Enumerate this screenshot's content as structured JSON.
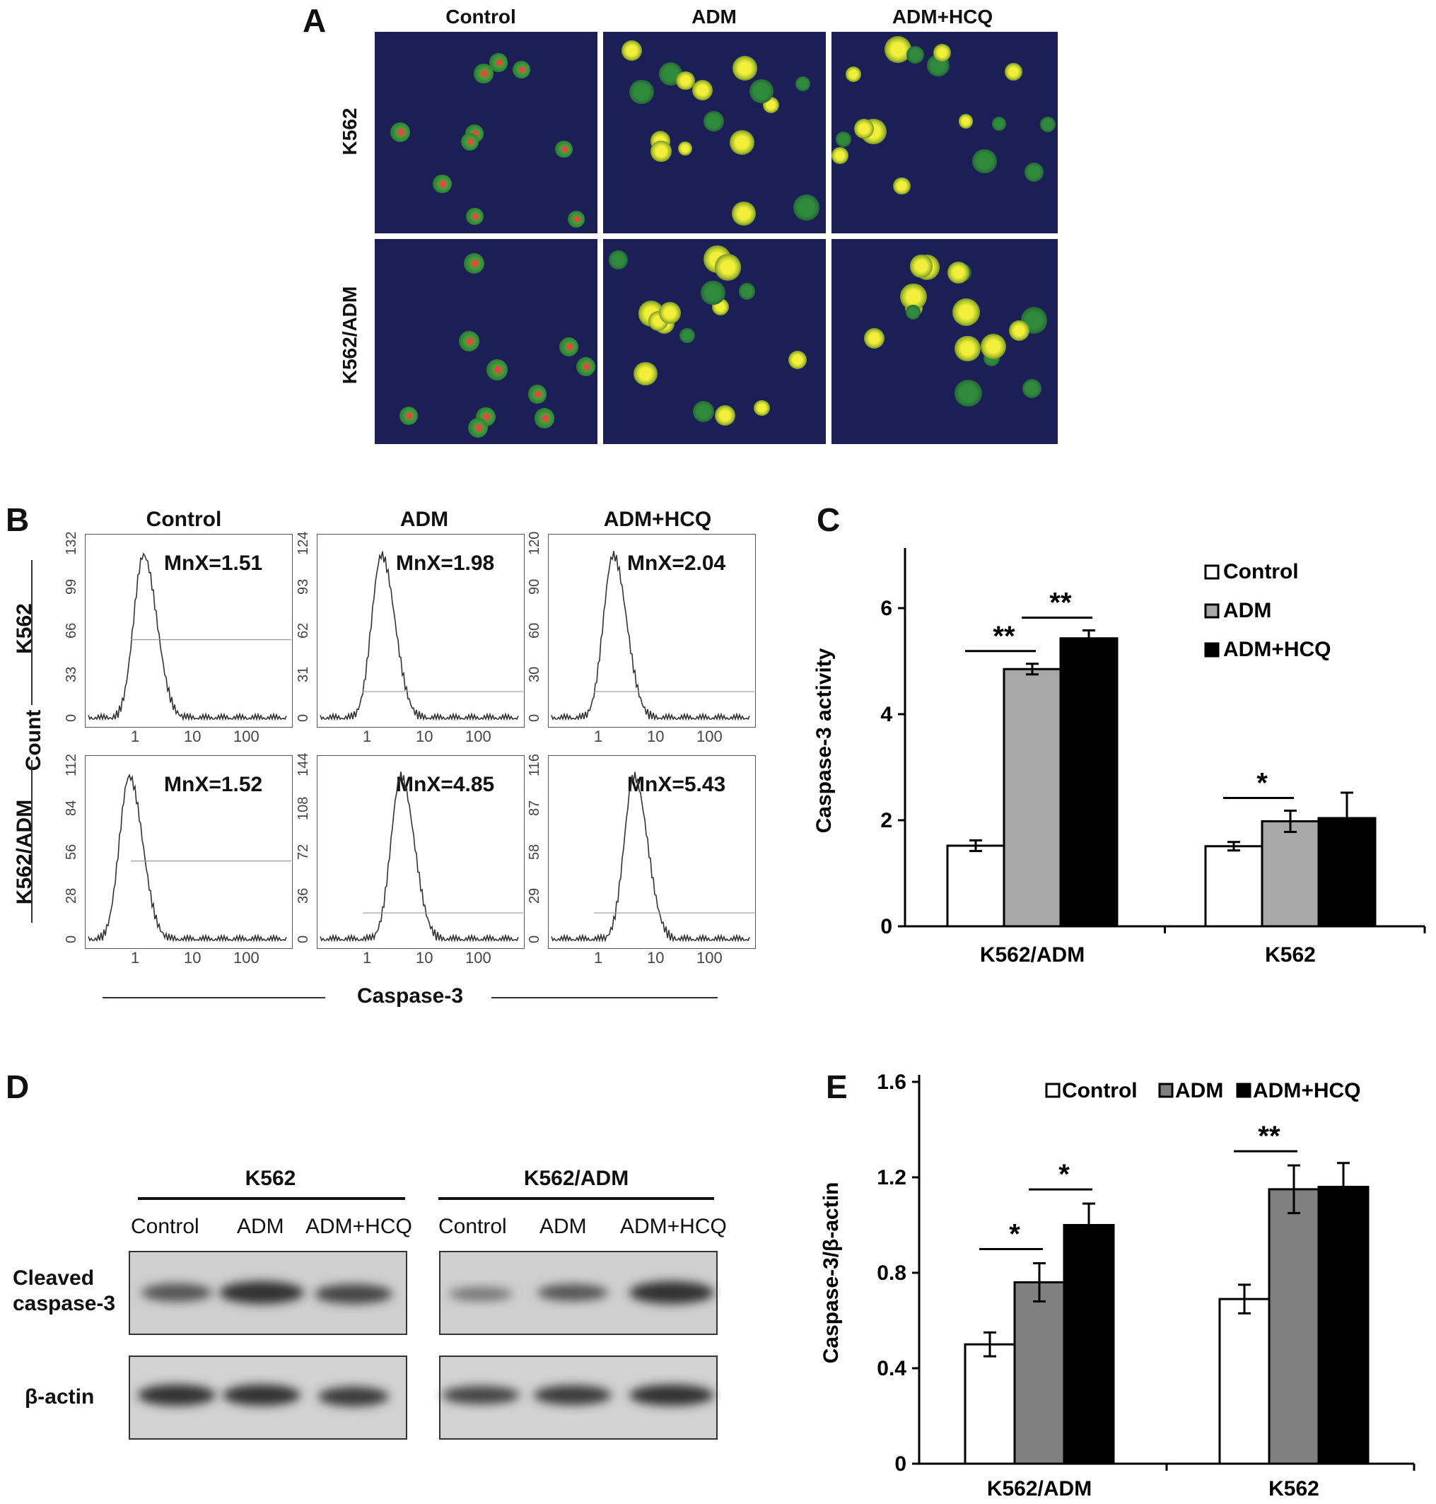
{
  "panelA": {
    "letter": "A",
    "columns": [
      "Control",
      "ADM",
      "ADM+HCQ"
    ],
    "rows": [
      "K562",
      "K562/ADM"
    ]
  },
  "panelB": {
    "letter": "B",
    "columns": [
      "Control",
      "ADM",
      "ADM+HCQ"
    ],
    "rows": [
      "K562",
      "K562/ADM"
    ],
    "ylabel": "Count",
    "xlabel": "Caspase-3",
    "x_ticks": [
      "1",
      "10",
      "100"
    ],
    "histograms": [
      {
        "row": "K562",
        "col": "Control",
        "mnx": "MnX=1.51",
        "yticks": [
          "0",
          "33",
          "66",
          "99",
          "132"
        ],
        "peak_at_log": 0.18
      },
      {
        "row": "K562",
        "col": "ADM",
        "mnx": "MnX=1.98",
        "yticks": [
          "0",
          "31",
          "62",
          "93",
          "124"
        ],
        "peak_at_log": 0.3
      },
      {
        "row": "K562",
        "col": "ADM+HCQ",
        "mnx": "MnX=2.04",
        "yticks": [
          "0",
          "30",
          "60",
          "90",
          "120"
        ],
        "peak_at_log": 0.31
      },
      {
        "row": "K562/ADM",
        "col": "Control",
        "mnx": "MnX=1.52",
        "yticks": [
          "0",
          "28",
          "56",
          "84",
          "112"
        ],
        "peak_at_log": -0.1
      },
      {
        "row": "K562/ADM",
        "col": "ADM",
        "mnx": "MnX=4.85",
        "yticks": [
          "0",
          "36",
          "72",
          "108",
          "144"
        ],
        "peak_at_log": 0.68
      },
      {
        "row": "K562/ADM",
        "col": "ADM+HCQ",
        "mnx": "MnX=5.43",
        "yticks": [
          "0",
          "29",
          "58",
          "87",
          "116"
        ],
        "peak_at_log": 0.72
      }
    ]
  },
  "panelD": {
    "letter": "D",
    "groups": [
      "K562",
      "K562/ADM"
    ],
    "lanes": [
      "Control",
      "ADM",
      "ADM+HCQ"
    ],
    "rows": [
      "Cleaved\ncaspase-3",
      "β-actin"
    ]
  },
  "chart_data": [
    {
      "panel": "C",
      "type": "bar",
      "categories": [
        "K562/ADM",
        "K562"
      ],
      "series": [
        {
          "name": "Control",
          "values": [
            1.52,
            1.51
          ],
          "errors": [
            0.1,
            0.08
          ],
          "color": "#ffffff"
        },
        {
          "name": "ADM",
          "values": [
            4.85,
            1.98
          ],
          "errors": [
            0.1,
            0.2
          ],
          "color": "#a8a8a8"
        },
        {
          "name": "ADM+HCQ",
          "values": [
            5.43,
            2.04
          ],
          "errors": [
            0.15,
            0.48
          ],
          "color": "#000000"
        }
      ],
      "ylabel": "Caspase-3 activity",
      "ylim": [
        0,
        7
      ],
      "yticks": [
        "0",
        "2",
        "4",
        "6"
      ],
      "legend_position": "top-right",
      "annotations": [
        {
          "text": "**",
          "category": "K562/ADM",
          "between": [
            "Control",
            "ADM"
          ]
        },
        {
          "text": "**",
          "category": "K562/ADM",
          "between": [
            "ADM",
            "ADM+HCQ"
          ]
        },
        {
          "text": "*",
          "category": "K562",
          "between": [
            "Control",
            "ADM"
          ]
        }
      ]
    },
    {
      "panel": "E",
      "type": "bar",
      "categories": [
        "K562/ADM",
        "K562"
      ],
      "series": [
        {
          "name": "Control",
          "values": [
            0.5,
            0.69
          ],
          "errors": [
            0.05,
            0.06
          ],
          "color": "#ffffff"
        },
        {
          "name": "ADM",
          "values": [
            0.76,
            1.15
          ],
          "errors": [
            0.08,
            0.1
          ],
          "color": "#808080"
        },
        {
          "name": "ADM+HCQ",
          "values": [
            1.0,
            1.16
          ],
          "errors": [
            0.09,
            0.1
          ],
          "color": "#000000"
        }
      ],
      "ylabel": "Caspase-3/β-actin",
      "ylim": [
        0,
        1.6
      ],
      "yticks": [
        "0",
        "0.4",
        "0.8",
        "1.2",
        "1.6"
      ],
      "legend_position": "top",
      "annotations": [
        {
          "text": "*",
          "category": "K562/ADM",
          "between": [
            "Control",
            "ADM"
          ]
        },
        {
          "text": "*",
          "category": "K562/ADM",
          "between": [
            "ADM",
            "ADM+HCQ"
          ]
        },
        {
          "text": "**",
          "category": "K562",
          "between": [
            "Control",
            "ADM"
          ]
        }
      ]
    }
  ],
  "panelC_letter": "C",
  "panelE_letter": "E"
}
